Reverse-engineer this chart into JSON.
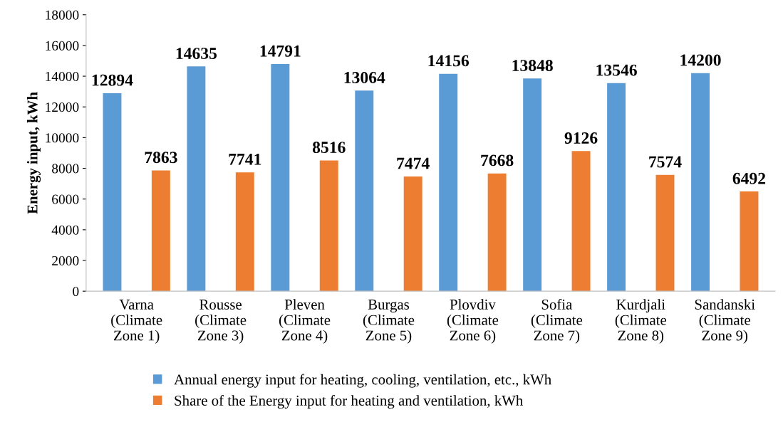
{
  "chart_data": {
    "type": "bar",
    "ylabel": "Energy input, kWh",
    "categories": [
      "Varna\n(Climate\nZone 1)",
      "Rousse\n(Climate\nZone 3)",
      "Pleven\n(Climate\nZone 4)",
      "Burgas\n(Climate\nZone 5)",
      "Plovdiv\n(Climate\nZone 6)",
      "Sofia\n(Climate\nZone 7)",
      "Kurdjali\n(Climate\nZone 8)",
      "Sandanski\n(Climate\nZone 9)"
    ],
    "series": [
      {
        "name": "Annual energy input for heating, cooling, ventilation, etc., kWh",
        "color": "#5b9bd5",
        "values": [
          12894,
          14635,
          14791,
          13064,
          14156,
          13848,
          13546,
          14200
        ]
      },
      {
        "name": "Share of the Energy input for heating and ventilation, kWh",
        "color": "#ed7d31",
        "values": [
          7863,
          7741,
          8516,
          7474,
          7668,
          9126,
          7574,
          6492
        ]
      }
    ],
    "ylim": [
      0,
      18000
    ],
    "yticks": [
      0,
      2000,
      4000,
      6000,
      8000,
      10000,
      12000,
      14000,
      16000,
      18000
    ],
    "data_labels": true,
    "grid": false,
    "legend": "bottom"
  }
}
